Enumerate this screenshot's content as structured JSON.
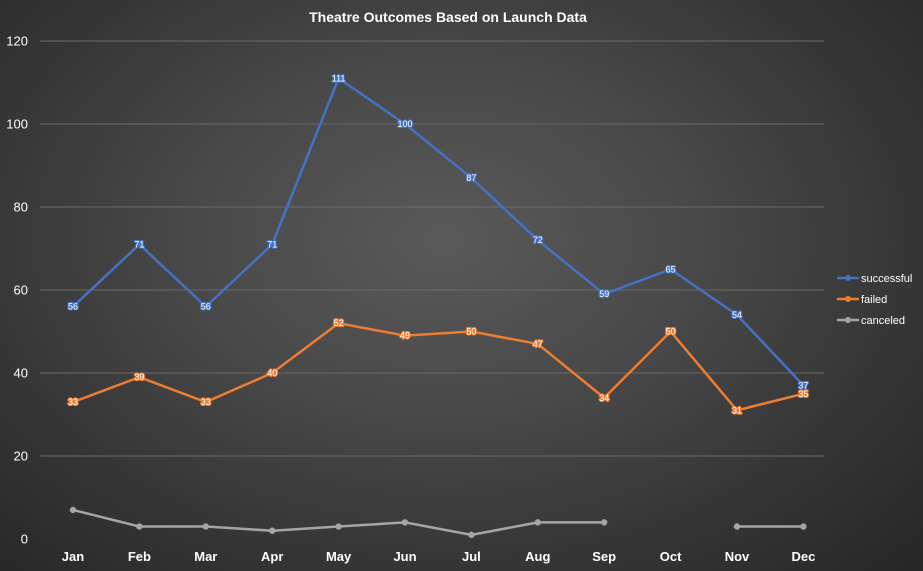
{
  "chart_data": {
    "type": "line",
    "title": "Theatre Outcomes Based on Launch Data",
    "xlabel": "",
    "ylabel": "",
    "categories": [
      "Jan",
      "Feb",
      "Mar",
      "Apr",
      "May",
      "Jun",
      "Jul",
      "Aug",
      "Sep",
      "Oct",
      "Nov",
      "Dec"
    ],
    "ylim": [
      0,
      120
    ],
    "yticks": [
      0,
      20,
      40,
      60,
      80,
      100,
      120
    ],
    "grid": true,
    "legend_position": "right",
    "series": [
      {
        "name": "successful",
        "color": "#4472c4",
        "values": [
          56,
          71,
          56,
          71,
          111,
          100,
          87,
          72,
          59,
          65,
          54,
          37
        ],
        "labels": [
          "56",
          "71",
          "56",
          "71",
          "111",
          "100",
          "87",
          "72",
          "59",
          "65",
          "54",
          "37"
        ]
      },
      {
        "name": "failed",
        "color": "#ed7d31",
        "values": [
          33,
          39,
          33,
          40,
          52,
          49,
          50,
          47,
          34,
          50,
          31,
          35
        ],
        "labels": [
          "33",
          "39",
          "33",
          "40",
          "52",
          "49",
          "50",
          "47",
          "34",
          "50",
          "31",
          "35"
        ]
      },
      {
        "name": "canceled",
        "color": "#a5a5a5",
        "values": [
          7,
          3,
          3,
          2,
          3,
          4,
          1,
          4,
          4,
          null,
          3,
          3
        ],
        "labels": [
          "",
          "",
          "",
          "",
          "",
          "",
          "",
          "",
          "",
          "",
          "",
          ""
        ]
      }
    ]
  }
}
